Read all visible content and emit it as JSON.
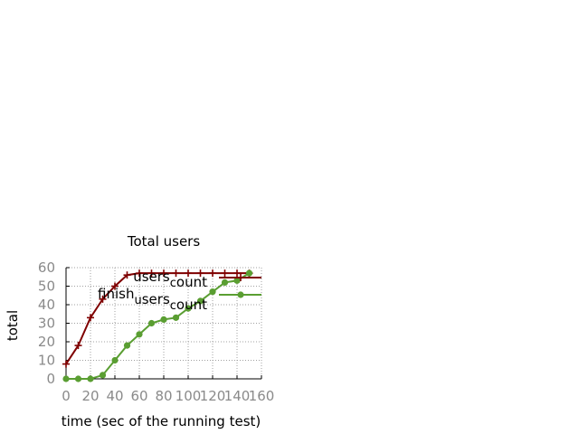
{
  "chart_data": {
    "type": "line",
    "title": "Total users",
    "xlabel": "time (sec of the running test)",
    "ylabel": "total",
    "xlim": [
      0,
      160
    ],
    "ylim": [
      0,
      60
    ],
    "x_ticks": [
      0,
      20,
      40,
      60,
      80,
      100,
      120,
      140,
      160
    ],
    "y_ticks": [
      0,
      10,
      20,
      30,
      40,
      50,
      60
    ],
    "grid": true,
    "legend_position": "top-right",
    "series": [
      {
        "name": "users_count",
        "legend_base": "users",
        "legend_sub": "c",
        "legend_tail": "ount",
        "color": "#7f0000",
        "marker": "plus",
        "x": [
          0,
          10,
          20,
          30,
          40,
          50,
          60,
          70,
          80,
          90,
          100,
          110,
          120,
          130,
          140,
          150
        ],
        "y": [
          8,
          18,
          33,
          43,
          50,
          56,
          57,
          57,
          57,
          57,
          57,
          57,
          57,
          57,
          57,
          57
        ]
      },
      {
        "name": "finish_users_count",
        "legend_base": "finish",
        "legend_sub": "u",
        "legend_mid": "sers",
        "legend_sub2": "c",
        "legend_tail": "ount",
        "color": "#5a9e32",
        "marker": "circle",
        "x": [
          0,
          10,
          20,
          30,
          40,
          50,
          60,
          70,
          80,
          90,
          100,
          110,
          120,
          130,
          140,
          150
        ],
        "y": [
          0,
          0,
          0,
          2,
          10,
          18,
          24,
          30,
          32,
          33,
          38,
          42,
          47,
          52,
          53,
          57
        ]
      }
    ]
  }
}
